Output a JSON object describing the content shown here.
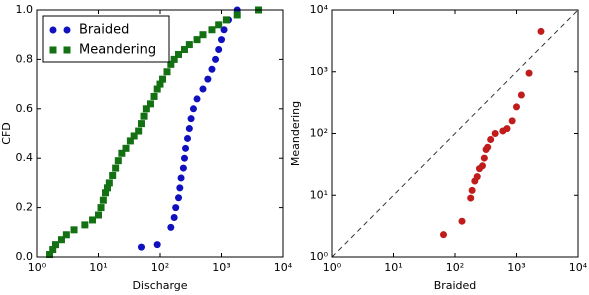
{
  "chart_data": [
    {
      "type": "scatter",
      "xlabel": "Discharge",
      "ylabel": "CFD",
      "xscale": "log",
      "yscale": "linear",
      "xlim": [
        1,
        10000
      ],
      "ylim": [
        0,
        1
      ],
      "xticks": [
        {
          "value": 1,
          "label": "10⁰"
        },
        {
          "value": 10,
          "label": "10¹"
        },
        {
          "value": 100,
          "label": "10²"
        },
        {
          "value": 1000,
          "label": "10³"
        },
        {
          "value": 10000,
          "label": "10⁴"
        }
      ],
      "yticks": [
        {
          "value": 0,
          "label": "0.0"
        },
        {
          "value": 0.2,
          "label": "0.2"
        },
        {
          "value": 0.4,
          "label": "0.4"
        },
        {
          "value": 0.6,
          "label": "0.6"
        },
        {
          "value": 0.8,
          "label": "0.8"
        },
        {
          "value": 1,
          "label": "1.0"
        }
      ],
      "legend": "upper left",
      "series": [
        {
          "name": "Braided",
          "color": "#1010bf",
          "marker": "circle",
          "x": [
            50,
            90,
            150,
            170,
            180,
            200,
            210,
            220,
            240,
            250,
            260,
            280,
            300,
            320,
            350,
            400,
            500,
            600,
            700,
            800,
            900,
            1000,
            1100,
            1300,
            1800
          ],
          "values": [
            0.04,
            0.05,
            0.12,
            0.16,
            0.2,
            0.24,
            0.28,
            0.32,
            0.36,
            0.4,
            0.44,
            0.48,
            0.52,
            0.56,
            0.6,
            0.64,
            0.68,
            0.72,
            0.76,
            0.8,
            0.84,
            0.88,
            0.92,
            0.96,
            1.0
          ]
        },
        {
          "name": "Meandering",
          "color": "#137013",
          "marker": "square",
          "x": [
            1.6,
            1.8,
            2,
            2.5,
            3,
            4,
            6,
            8,
            10,
            11,
            12,
            13,
            14,
            15,
            17,
            19,
            21,
            24,
            28,
            33,
            38,
            45,
            50,
            55,
            60,
            70,
            80,
            90,
            100,
            110,
            130,
            150,
            170,
            200,
            250,
            300,
            400,
            500,
            700,
            900,
            1200,
            1800,
            4000
          ],
          "values": [
            0.01,
            0.03,
            0.05,
            0.07,
            0.09,
            0.11,
            0.13,
            0.15,
            0.17,
            0.2,
            0.23,
            0.26,
            0.28,
            0.3,
            0.33,
            0.36,
            0.39,
            0.42,
            0.44,
            0.47,
            0.49,
            0.51,
            0.54,
            0.57,
            0.6,
            0.62,
            0.65,
            0.68,
            0.7,
            0.72,
            0.75,
            0.78,
            0.8,
            0.82,
            0.84,
            0.86,
            0.88,
            0.9,
            0.92,
            0.94,
            0.96,
            0.98,
            1.0
          ]
        }
      ]
    },
    {
      "type": "scatter",
      "xlabel": "Braided",
      "ylabel": "Meandering",
      "xscale": "log",
      "yscale": "log",
      "xlim": [
        1,
        10000
      ],
      "ylim": [
        1,
        10000
      ],
      "identity_line": true,
      "xticks": [
        {
          "value": 1,
          "label": "10⁰"
        },
        {
          "value": 10,
          "label": "10¹"
        },
        {
          "value": 100,
          "label": "10²"
        },
        {
          "value": 1000,
          "label": "10³"
        },
        {
          "value": 10000,
          "label": "10⁴"
        }
      ],
      "yticks": [
        {
          "value": 1,
          "label": "10⁰"
        },
        {
          "value": 10,
          "label": "10¹"
        },
        {
          "value": 100,
          "label": "10²"
        },
        {
          "value": 1000,
          "label": "10³"
        },
        {
          "value": 10000,
          "label": "10⁴"
        }
      ],
      "series": [
        {
          "color": "#c01c1c",
          "marker": "circle",
          "x": [
            65,
            130,
            180,
            190,
            210,
            230,
            250,
            280,
            300,
            320,
            340,
            380,
            450,
            600,
            700,
            850,
            1000,
            1200,
            1600,
            2500
          ],
          "values": [
            2.3,
            3.8,
            9,
            12,
            17,
            20,
            27,
            30,
            40,
            55,
            60,
            80,
            100,
            110,
            120,
            160,
            270,
            420,
            950,
            4500
          ]
        }
      ]
    }
  ]
}
